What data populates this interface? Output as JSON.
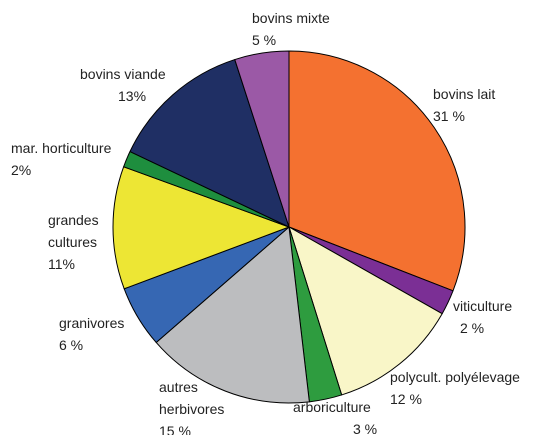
{
  "chart_data": {
    "type": "pie",
    "title": "",
    "start_angle_deg": 0,
    "direction": "clockwise",
    "legend": "none",
    "slices": [
      {
        "key": "bovins-lait",
        "label": "bovins lait",
        "value_label": "31 %",
        "value": 31,
        "color": "#f47130"
      },
      {
        "key": "viticulture",
        "label": "viticulture",
        "value_label": "2 %",
        "value": 2.3,
        "color": "#7b2f95"
      },
      {
        "key": "polycult-polyelevage",
        "label": "polycult. polyélevage",
        "value_label": "12 %",
        "value": 12,
        "color": "#f9f6c8"
      },
      {
        "key": "arboriculture",
        "label": "arboriculture",
        "value_label": "3 %",
        "value": 3,
        "color": "#2e9c3f"
      },
      {
        "key": "autres-herbivores",
        "label": "autres herbivores",
        "value_label": "15 %",
        "value": 15.5,
        "color": "#bcbdbf"
      },
      {
        "key": "granivores",
        "label": "granivores",
        "value_label": "6 %",
        "value": 5.7,
        "color": "#3667b3"
      },
      {
        "key": "grandes-cultures",
        "label": "grandes cultures",
        "value_label": "11%",
        "value": 11.3,
        "color": "#ede634"
      },
      {
        "key": "mar-horticulture",
        "label": "mar. horticulture",
        "value_label": "2%",
        "value": 1.5,
        "color": "#1e8e3e"
      },
      {
        "key": "bovins-viande",
        "label": "bovins viande",
        "value_label": "13%",
        "value": 13,
        "color": "#1f2f64"
      },
      {
        "key": "bovins-mixte",
        "label": "bovins mixte",
        "value_label": "5 %",
        "value": 5,
        "color": "#9b59a6"
      }
    ]
  }
}
